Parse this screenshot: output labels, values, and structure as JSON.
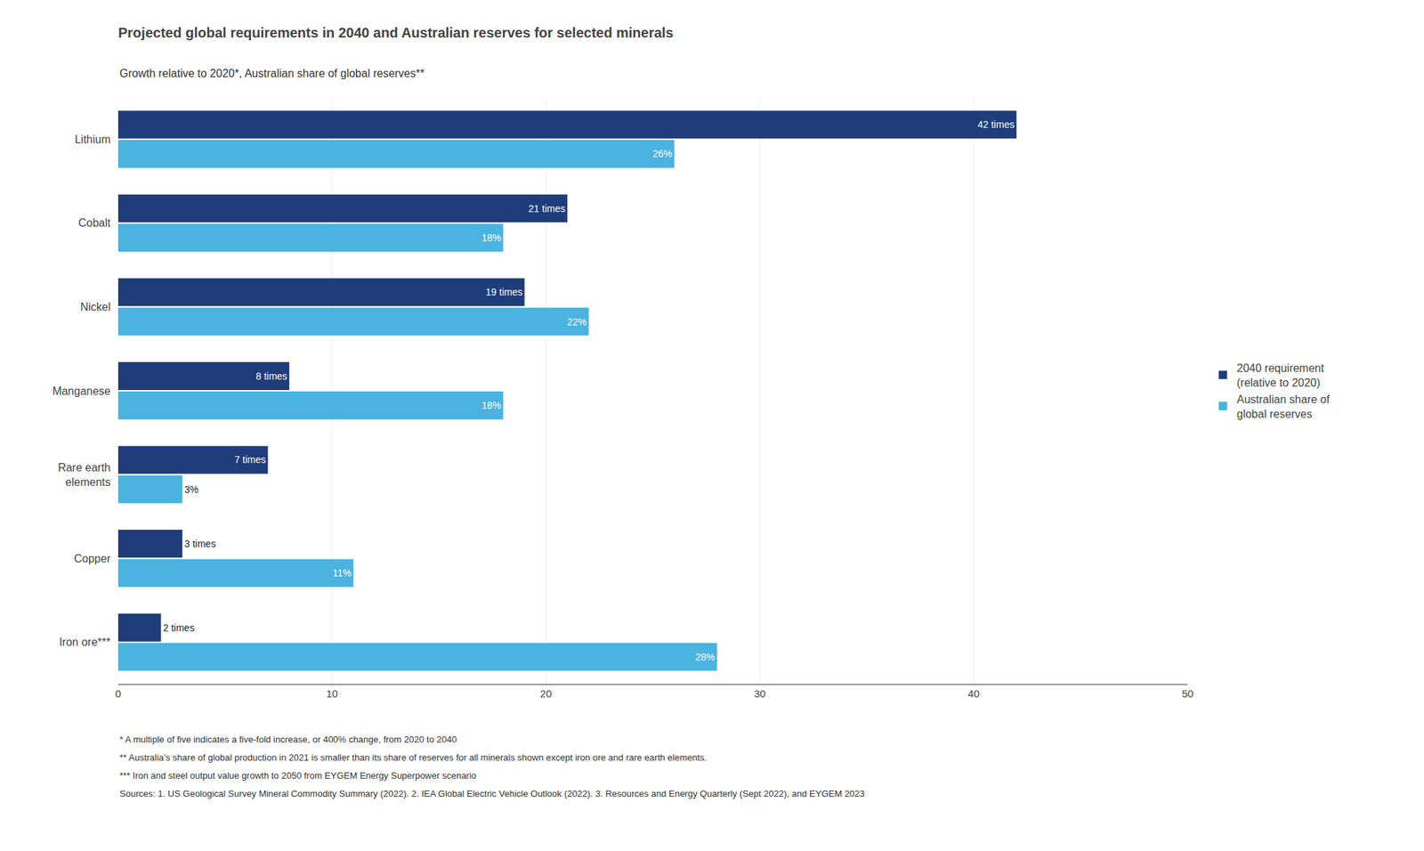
{
  "chart_data": {
    "type": "bar",
    "orientation": "horizontal",
    "title": "Projected global requirements in 2040 and Australian reserves for selected minerals",
    "subtitle": "Growth relative to 2020*, Australian share of global reserves**",
    "categories": [
      "Lithium",
      "Cobalt",
      "Nickel",
      "Manganese",
      "Rare earth\nelements",
      "Copper",
      "Iron ore***"
    ],
    "series": [
      {
        "name": "2040 requirement\n(relative to 2020)",
        "color": "#1f3d7a",
        "values": [
          42,
          21,
          19,
          8,
          7,
          3,
          2
        ],
        "value_labels": [
          "42 times",
          "21 times",
          "19 times",
          "8 times",
          "7 times",
          "3 times",
          "2 times"
        ]
      },
      {
        "name": "Australian share of\nglobal reserves",
        "color": "#4ab3e0",
        "values": [
          26,
          18,
          22,
          18,
          3,
          11,
          28
        ],
        "value_labels": [
          "26%",
          "18%",
          "22%",
          "18%",
          "3%",
          "11%",
          "28%"
        ]
      }
    ],
    "xlim": [
      0,
      50
    ],
    "xticks": [
      0,
      10,
      20,
      30,
      40,
      50
    ],
    "grid": true,
    "legend": "right",
    "data_labels": true,
    "annotations": [
      "* A multiple of five indicates a five-fold increase, or 400% change, from 2020 to 2040",
      "** Australia’s share of global production in 2021 is smaller than its share of reserves for all minerals shown except iron ore and rare earth elements.",
      "*** Iron and steel output value growth to 2050 from EYGEM Energy Superpower scenario",
      "Sources: 1. US Geological Survey Mineral Commodity Summary (2022). 2. IEA Global Electric Vehicle Outlook (2022). 3. Resources and Energy Quarterly (Sept 2022), and EYGEM 2023"
    ]
  }
}
